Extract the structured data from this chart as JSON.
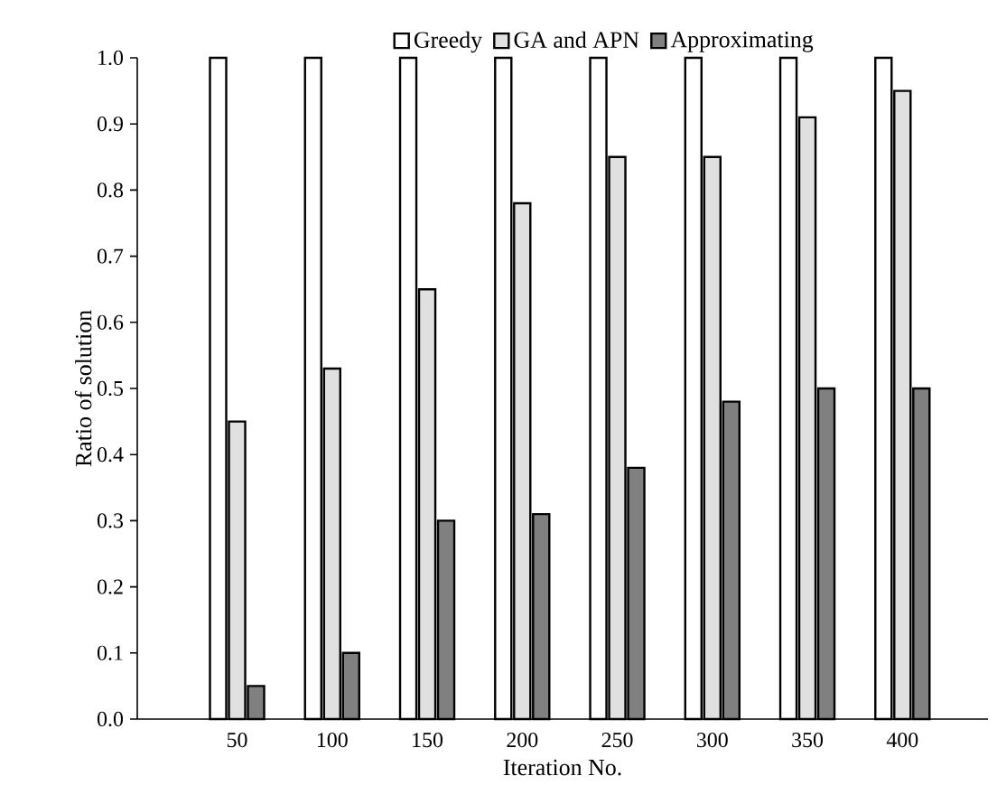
{
  "chart_data": {
    "type": "bar",
    "xlabel": "Iteration No.",
    "ylabel": "Ratio of solution",
    "categories": [
      "50",
      "100",
      "150",
      "200",
      "250",
      "300",
      "350",
      "400"
    ],
    "series": [
      {
        "name": "Greedy",
        "color": "#ffffff",
        "values": [
          1.0,
          1.0,
          1.0,
          1.0,
          1.0,
          1.0,
          1.0,
          1.0
        ]
      },
      {
        "name": "GA and APN",
        "color": "#e0e0e0",
        "values": [
          0.45,
          0.53,
          0.65,
          0.78,
          0.85,
          0.85,
          0.91,
          0.95
        ]
      },
      {
        "name": "Approximating",
        "color": "#808080",
        "values": [
          0.05,
          0.1,
          0.3,
          0.31,
          0.38,
          0.48,
          0.5,
          0.5
        ]
      }
    ],
    "ylim": [
      0,
      1
    ],
    "yticks": [
      {
        "value": 0,
        "label": "0.0"
      },
      {
        "value": 0.1,
        "label": "0.1"
      },
      {
        "value": 0.2,
        "label": "0.2"
      },
      {
        "value": 0.3,
        "label": "0.3"
      },
      {
        "value": 0.4,
        "label": "0.4"
      },
      {
        "value": 0.5,
        "label": "0.5"
      },
      {
        "value": 0.6,
        "label": "0.6"
      },
      {
        "value": 0.7,
        "label": "0.7"
      },
      {
        "value": 0.8,
        "label": "0.8"
      },
      {
        "value": 0.9,
        "label": "0.9"
      },
      {
        "value": 1.0,
        "label": "1.0"
      }
    ],
    "grid": false,
    "legend": "top"
  }
}
